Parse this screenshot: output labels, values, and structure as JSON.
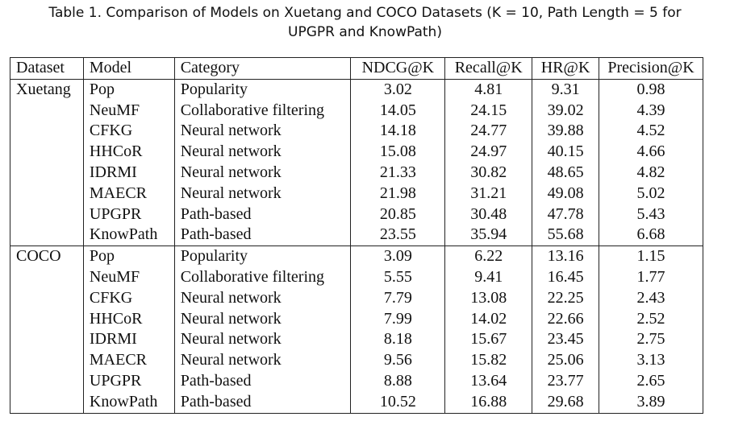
{
  "caption": {
    "line1": "Table 1.  Comparison of Models on Xuetang and COCO Datasets (K = 10, Path Length = 5 for",
    "line2": "UPGPR and KnowPath)"
  },
  "table": {
    "headers": [
      "Dataset",
      "Model",
      "Category",
      "NDCG@K",
      "Recall@K",
      "HR@K",
      "Precision@K"
    ],
    "groups": [
      {
        "dataset": "Xuetang",
        "rows": [
          {
            "model": "Pop",
            "category": "Popularity",
            "ndcg": "3.02",
            "recall": "4.81",
            "hr": "9.31",
            "precision": "0.98"
          },
          {
            "model": "NeuMF",
            "category": "Collaborative filtering",
            "ndcg": "14.05",
            "recall": "24.15",
            "hr": "39.02",
            "precision": "4.39"
          },
          {
            "model": "CFKG",
            "category": "Neural network",
            "ndcg": "14.18",
            "recall": "24.77",
            "hr": "39.88",
            "precision": "4.52"
          },
          {
            "model": "HHCoR",
            "category": "Neural network",
            "ndcg": "15.08",
            "recall": "24.97",
            "hr": "40.15",
            "precision": "4.66"
          },
          {
            "model": "IDRMI",
            "category": "Neural network",
            "ndcg": "21.33",
            "recall": "30.82",
            "hr": "48.65",
            "precision": "4.82"
          },
          {
            "model": "MAECR",
            "category": "Neural network",
            "ndcg": "21.98",
            "recall": "31.21",
            "hr": "49.08",
            "precision": "5.02"
          },
          {
            "model": "UPGPR",
            "category": "Path-based",
            "ndcg": "20.85",
            "recall": "30.48",
            "hr": "47.78",
            "precision": "5.43"
          },
          {
            "model": "KnowPath",
            "category": "Path-based",
            "ndcg": "23.55",
            "recall": "35.94",
            "hr": "55.68",
            "precision": "6.68"
          }
        ]
      },
      {
        "dataset": "COCO",
        "rows": [
          {
            "model": "Pop",
            "category": "Popularity",
            "ndcg": "3.09",
            "recall": "6.22",
            "hr": "13.16",
            "precision": "1.15"
          },
          {
            "model": "NeuMF",
            "category": "Collaborative filtering",
            "ndcg": "5.55",
            "recall": "9.41",
            "hr": "16.45",
            "precision": "1.77"
          },
          {
            "model": "CFKG",
            "category": "Neural network",
            "ndcg": "7.79",
            "recall": "13.08",
            "hr": "22.25",
            "precision": "2.43"
          },
          {
            "model": "HHCoR",
            "category": "Neural network",
            "ndcg": "7.99",
            "recall": "14.02",
            "hr": "22.66",
            "precision": "2.52"
          },
          {
            "model": "IDRMI",
            "category": "Neural network",
            "ndcg": "8.18",
            "recall": "15.67",
            "hr": "23.45",
            "precision": "2.75"
          },
          {
            "model": "MAECR",
            "category": "Neural network",
            "ndcg": "9.56",
            "recall": "15.82",
            "hr": "25.06",
            "precision": "3.13"
          },
          {
            "model": "UPGPR",
            "category": "Path-based",
            "ndcg": "8.88",
            "recall": "13.64",
            "hr": "23.77",
            "precision": "2.65"
          },
          {
            "model": "KnowPath",
            "category": "Path-based",
            "ndcg": "10.52",
            "recall": "16.88",
            "hr": "29.68",
            "precision": "3.89"
          }
        ]
      }
    ]
  }
}
